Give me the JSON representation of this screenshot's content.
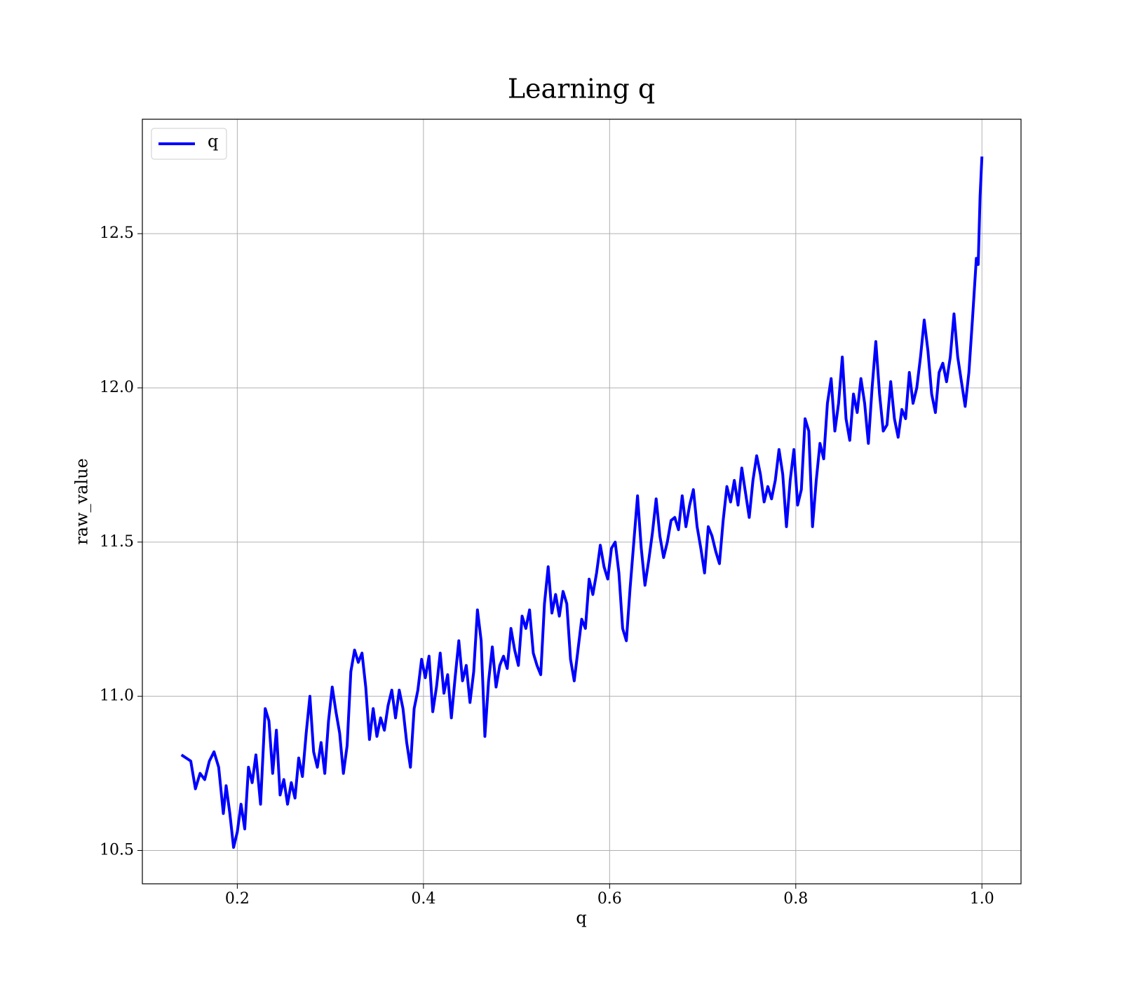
{
  "chart_data": {
    "type": "line",
    "title": "Learning q",
    "x_label": "q",
    "y_label": "raw_value",
    "x": [
      0.14,
      0.15,
      0.155,
      0.16,
      0.165,
      0.17,
      0.175,
      0.18,
      0.185,
      0.188,
      0.192,
      0.196,
      0.2,
      0.204,
      0.208,
      0.212,
      0.216,
      0.22,
      0.225,
      0.23,
      0.234,
      0.238,
      0.242,
      0.246,
      0.25,
      0.254,
      0.258,
      0.262,
      0.266,
      0.27,
      0.274,
      0.278,
      0.282,
      0.286,
      0.29,
      0.294,
      0.298,
      0.302,
      0.306,
      0.31,
      0.314,
      0.318,
      0.322,
      0.326,
      0.33,
      0.334,
      0.338,
      0.342,
      0.346,
      0.35,
      0.354,
      0.358,
      0.362,
      0.366,
      0.37,
      0.374,
      0.378,
      0.382,
      0.386,
      0.39,
      0.394,
      0.398,
      0.402,
      0.406,
      0.41,
      0.414,
      0.418,
      0.422,
      0.426,
      0.43,
      0.434,
      0.438,
      0.442,
      0.446,
      0.45,
      0.454,
      0.458,
      0.462,
      0.466,
      0.47,
      0.474,
      0.478,
      0.482,
      0.486,
      0.49,
      0.494,
      0.498,
      0.502,
      0.506,
      0.51,
      0.514,
      0.518,
      0.522,
      0.526,
      0.53,
      0.534,
      0.538,
      0.542,
      0.546,
      0.55,
      0.554,
      0.558,
      0.562,
      0.566,
      0.57,
      0.574,
      0.578,
      0.582,
      0.586,
      0.59,
      0.594,
      0.598,
      0.602,
      0.606,
      0.61,
      0.614,
      0.618,
      0.622,
      0.626,
      0.63,
      0.634,
      0.638,
      0.642,
      0.646,
      0.65,
      0.654,
      0.658,
      0.662,
      0.666,
      0.67,
      0.674,
      0.678,
      0.682,
      0.686,
      0.69,
      0.694,
      0.698,
      0.702,
      0.706,
      0.71,
      0.714,
      0.718,
      0.722,
      0.726,
      0.73,
      0.734,
      0.738,
      0.742,
      0.746,
      0.75,
      0.754,
      0.758,
      0.762,
      0.766,
      0.77,
      0.774,
      0.778,
      0.782,
      0.786,
      0.79,
      0.794,
      0.798,
      0.802,
      0.806,
      0.81,
      0.814,
      0.818,
      0.822,
      0.826,
      0.83,
      0.834,
      0.838,
      0.842,
      0.846,
      0.85,
      0.854,
      0.858,
      0.862,
      0.866,
      0.87,
      0.874,
      0.878,
      0.882,
      0.886,
      0.89,
      0.894,
      0.898,
      0.902,
      0.906,
      0.91,
      0.914,
      0.918,
      0.922,
      0.926,
      0.93,
      0.934,
      0.938,
      0.942,
      0.946,
      0.95,
      0.954,
      0.958,
      0.962,
      0.966,
      0.97,
      0.974,
      0.978,
      0.982,
      0.986,
      0.99,
      0.994,
      0.996,
      0.998,
      1.0
    ],
    "series": [
      {
        "name": "q",
        "color": "#0000ff",
        "values": [
          10.81,
          10.79,
          10.7,
          10.75,
          10.73,
          10.79,
          10.82,
          10.77,
          10.62,
          10.71,
          10.62,
          10.51,
          10.56,
          10.65,
          10.57,
          10.77,
          10.72,
          10.81,
          10.65,
          10.96,
          10.92,
          10.75,
          10.89,
          10.68,
          10.73,
          10.65,
          10.72,
          10.67,
          10.8,
          10.74,
          10.88,
          11.0,
          10.82,
          10.77,
          10.85,
          10.75,
          10.92,
          11.03,
          10.95,
          10.88,
          10.75,
          10.84,
          11.08,
          11.15,
          11.11,
          11.14,
          11.03,
          10.86,
          10.96,
          10.87,
          10.93,
          10.89,
          10.97,
          11.02,
          10.93,
          11.02,
          10.96,
          10.85,
          10.77,
          10.96,
          11.02,
          11.12,
          11.06,
          11.13,
          10.95,
          11.03,
          11.14,
          11.01,
          11.07,
          10.93,
          11.06,
          11.18,
          11.05,
          11.1,
          10.98,
          11.08,
          11.28,
          11.18,
          10.87,
          11.05,
          11.16,
          11.03,
          11.1,
          11.13,
          11.09,
          11.22,
          11.15,
          11.1,
          11.26,
          11.22,
          11.28,
          11.14,
          11.1,
          11.07,
          11.3,
          11.42,
          11.27,
          11.33,
          11.26,
          11.34,
          11.3,
          11.12,
          11.05,
          11.15,
          11.25,
          11.22,
          11.38,
          11.33,
          11.4,
          11.49,
          11.42,
          11.38,
          11.48,
          11.5,
          11.4,
          11.22,
          11.18,
          11.35,
          11.5,
          11.65,
          11.48,
          11.36,
          11.44,
          11.53,
          11.64,
          11.52,
          11.45,
          11.5,
          11.57,
          11.58,
          11.54,
          11.65,
          11.55,
          11.62,
          11.67,
          11.55,
          11.48,
          11.4,
          11.55,
          11.52,
          11.47,
          11.43,
          11.57,
          11.68,
          11.63,
          11.7,
          11.62,
          11.74,
          11.66,
          11.58,
          11.7,
          11.78,
          11.72,
          11.63,
          11.68,
          11.64,
          11.7,
          11.8,
          11.72,
          11.55,
          11.7,
          11.8,
          11.62,
          11.67,
          11.9,
          11.86,
          11.55,
          11.7,
          11.82,
          11.77,
          11.95,
          12.03,
          11.86,
          11.95,
          12.1,
          11.9,
          11.83,
          11.98,
          11.92,
          12.03,
          11.95,
          11.82,
          12.0,
          12.15,
          11.98,
          11.86,
          11.88,
          12.02,
          11.9,
          11.84,
          11.93,
          11.9,
          12.05,
          11.95,
          12.0,
          12.1,
          12.22,
          12.12,
          11.98,
          11.92,
          12.05,
          12.08,
          12.02,
          12.1,
          12.24,
          12.1,
          12.02,
          11.94,
          12.05,
          12.23,
          12.42,
          12.4,
          12.62,
          12.75
        ]
      }
    ],
    "xlim": [
      0.098,
      1.042
    ],
    "ylim": [
      10.392,
      12.871
    ],
    "xticks": [
      0.2,
      0.4,
      0.6,
      0.8,
      {
        "value": 1.0,
        "label": "1.0"
      }
    ],
    "yticks": [
      10.5,
      {
        "value": 11.0,
        "label": "11.0"
      },
      11.5,
      {
        "value": 12.0,
        "label": "12.0"
      },
      12.5
    ],
    "grid": true,
    "legend": "upper left"
  }
}
